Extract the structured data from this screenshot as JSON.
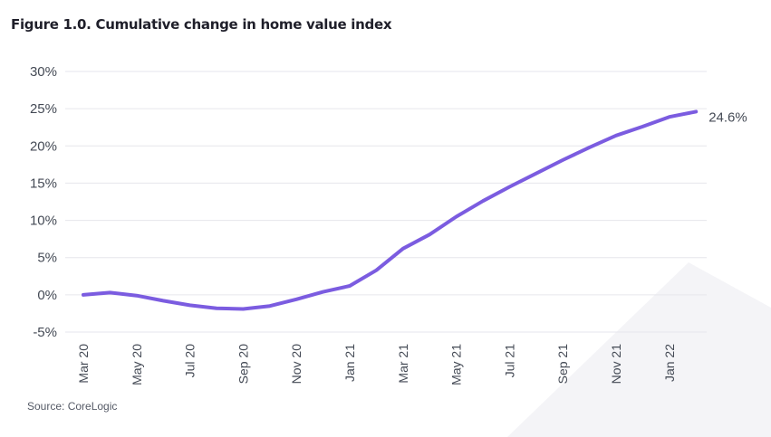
{
  "title": "Figure 1.0. Cumulative change in home value index",
  "source": "Source: CoreLogic",
  "colors": {
    "line": "#7b5ce0",
    "grid": "#e6e6ec",
    "watermark": "#f4f4f7"
  },
  "chart_data": {
    "type": "line",
    "title": "Figure 1.0. Cumulative change in home value index",
    "xlabel": "",
    "ylabel": "",
    "ylim": [
      -5,
      30
    ],
    "yticks": [
      "30%",
      "25%",
      "20%",
      "15%",
      "10%",
      "5%",
      "0%",
      "-5%"
    ],
    "ytick_values": [
      30,
      25,
      20,
      15,
      10,
      5,
      0,
      -5
    ],
    "xtick_labels": [
      "Mar 20",
      "May 20",
      "Jul 20",
      "Sep 20",
      "Nov 20",
      "Jan 21",
      "Mar 21",
      "May 21",
      "Jul 21",
      "Sep 21",
      "Nov 21",
      "Jan 22"
    ],
    "x": [
      "Mar 20",
      "Apr 20",
      "May 20",
      "Jun 20",
      "Jul 20",
      "Aug 20",
      "Sep 20",
      "Oct 20",
      "Nov 20",
      "Dec 20",
      "Jan 21",
      "Feb 21",
      "Mar 21",
      "Apr 21",
      "May 21",
      "Jun 21",
      "Jul 21",
      "Aug 21",
      "Sep 21",
      "Oct 21",
      "Nov 21",
      "Dec 21",
      "Jan 22",
      "Feb 22"
    ],
    "series": [
      {
        "values": [
          0.0,
          0.3,
          -0.1,
          -0.8,
          -1.4,
          -1.8,
          -1.9,
          -1.5,
          -0.6,
          0.4,
          1.2,
          3.3,
          6.2,
          8.1,
          10.5,
          12.6,
          14.5,
          16.3,
          18.1,
          19.8,
          21.4,
          22.6,
          23.9,
          24.6
        ]
      }
    ],
    "end_label": "24.6%",
    "grid": true,
    "legend": "none"
  }
}
